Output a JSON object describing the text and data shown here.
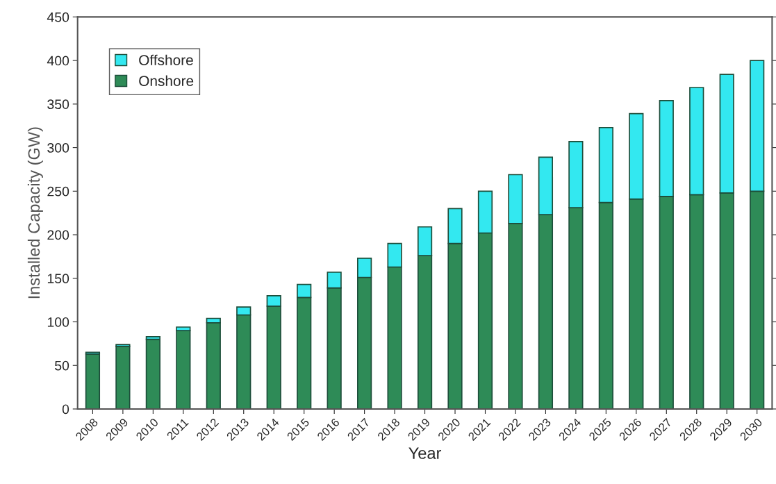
{
  "chart_data": {
    "type": "bar",
    "stacked": true,
    "xlabel": "Year",
    "ylabel": "Installed Capacity (GW)",
    "categories": [
      "2008",
      "2009",
      "2010",
      "2011",
      "2012",
      "2013",
      "2014",
      "2015",
      "2016",
      "2017",
      "2018",
      "2019",
      "2020",
      "2021",
      "2022",
      "2023",
      "2024",
      "2025",
      "2026",
      "2027",
      "2028",
      "2029",
      "2030"
    ],
    "series": [
      {
        "name": "Onshore",
        "color": "#2e8b57",
        "values": [
          63,
          72,
          80,
          90,
          99,
          108,
          118,
          128,
          139,
          151,
          163,
          176,
          190,
          202,
          213,
          223,
          231,
          237,
          241,
          244,
          246,
          248,
          250
        ]
      },
      {
        "name": "Offshore",
        "color": "#33e8f0",
        "values": [
          2,
          2,
          3,
          4,
          5,
          9,
          12,
          15,
          18,
          22,
          27,
          33,
          40,
          48,
          56,
          66,
          76,
          86,
          98,
          110,
          123,
          136,
          150
        ]
      }
    ],
    "ylim": [
      0,
      450
    ],
    "yticks": [
      0,
      50,
      100,
      150,
      200,
      250,
      300,
      350,
      400,
      450
    ],
    "grid": false,
    "legend": "top left"
  }
}
